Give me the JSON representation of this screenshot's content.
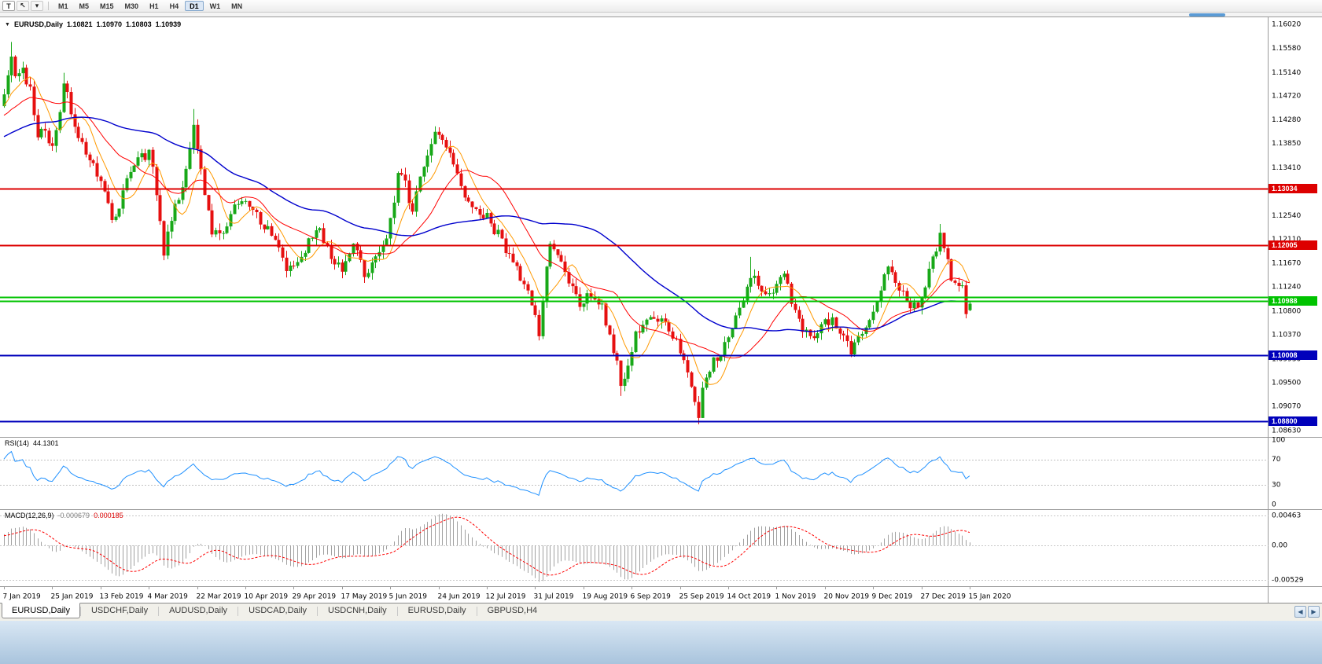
{
  "toolbar": {
    "tick_button": "T",
    "cursor_icon": "↖",
    "dropdown_icon": "▾",
    "timeframes": [
      "M1",
      "M5",
      "M15",
      "M30",
      "H1",
      "H4",
      "D1",
      "W1",
      "MN"
    ],
    "active_timeframe": "D1"
  },
  "chart_header": {
    "collapse_icon": "▼",
    "symbol": "EURUSD,Daily",
    "open": "1.10821",
    "high": "1.10970",
    "low": "1.10803",
    "close": "1.10939"
  },
  "price_axis": {
    "min": 1.0863,
    "max": 1.1602,
    "ticks": [
      "1.16020",
      "1.15580",
      "1.15140",
      "1.14720",
      "1.14280",
      "1.13850",
      "1.13410",
      "1.12980",
      "1.12540",
      "1.12110",
      "1.11670",
      "1.11240",
      "1.10800",
      "1.10370",
      "1.09930",
      "1.09500",
      "1.09070",
      "1.08630"
    ]
  },
  "hlines": [
    {
      "price": 1.13034,
      "label": "1.13034",
      "color": "#dd0000",
      "width": 2
    },
    {
      "price": 1.12005,
      "label": "1.12005",
      "color": "#dd0000",
      "width": 2
    },
    {
      "price": 1.11056,
      "label": "",
      "color": "#00c300",
      "width": 2
    },
    {
      "price": 1.10988,
      "label": "1.10988",
      "color": "#00c300",
      "width": 2
    },
    {
      "price": 1.10008,
      "label": "1.10008",
      "color": "#0000bb",
      "width": 2
    },
    {
      "price": 1.088,
      "label": "1.08800",
      "color": "#0000bb",
      "width": 2
    }
  ],
  "rsi_panel": {
    "label": "RSI(14)",
    "value": "44.1301",
    "ticks": [
      100,
      70,
      30,
      0
    ],
    "levels": [
      70,
      30
    ],
    "line_color": "#1e90ff"
  },
  "macd_panel": {
    "label": "MACD(12,26,9)",
    "value_main": "-0.000679",
    "value_signal": "0.000185",
    "axis_max": 0.00463,
    "axis_min": -0.00529,
    "ticks": [
      "0.00463",
      "0.00",
      "-0.00529"
    ],
    "histogram_color": "#a0a0a0",
    "signal_color": "#ff0000"
  },
  "date_axis": {
    "bars_per_label": 13,
    "labels": [
      "7 Jan 2019",
      "25 Jan 2019",
      "13 Feb 2019",
      "4 Mar 2019",
      "22 Mar 2019",
      "10 Apr 2019",
      "29 Apr 2019",
      "17 May 2019",
      "5 Jun 2019",
      "24 Jun 2019",
      "12 Jul 2019",
      "31 Jul 2019",
      "19 Aug 2019",
      "6 Sep 2019",
      "25 Sep 2019",
      "14 Oct 2019",
      "1 Nov 2019",
      "20 Nov 2019",
      "9 Dec 2019",
      "27 Dec 2019",
      "15 Jan 2020"
    ]
  },
  "tabs": {
    "items": [
      "EURUSD,Daily",
      "USDCHF,Daily",
      "AUDUSD,Daily",
      "USDCAD,Daily",
      "USDCNH,Daily",
      "EURUSD,Daily",
      "GBPUSD,H4"
    ],
    "active_index": 0,
    "scroll_left": "◀",
    "scroll_right": "▶"
  },
  "chart_data": {
    "type": "candlestick",
    "symbol": "EURUSD",
    "timeframe": "Daily",
    "n_bars": 261,
    "warmup_bars": 60,
    "noise_seed": 7,
    "noise_amp": 0.002,
    "wick_amp": 0.0013,
    "current_bar": {
      "open": 1.10821,
      "high": 1.1097,
      "low": 1.10803,
      "close": 1.10939
    },
    "close_path_anchors": [
      [
        -60,
        1.132
      ],
      [
        -25,
        1.1405
      ],
      [
        -5,
        1.1445
      ],
      [
        0,
        1.1465
      ],
      [
        2,
        1.155
      ],
      [
        3,
        1.1505
      ],
      [
        5,
        1.152
      ],
      [
        7,
        1.148
      ],
      [
        9,
        1.139
      ],
      [
        11,
        1.1415
      ],
      [
        13,
        1.1375
      ],
      [
        15,
        1.1435
      ],
      [
        16,
        1.15
      ],
      [
        18,
        1.1445
      ],
      [
        21,
        1.138
      ],
      [
        24,
        1.1345
      ],
      [
        27,
        1.1295
      ],
      [
        29,
        1.1245
      ],
      [
        32,
        1.129
      ],
      [
        34,
        1.1335
      ],
      [
        37,
        1.136
      ],
      [
        39,
        1.137
      ],
      [
        41,
        1.13
      ],
      [
        43,
        1.119
      ],
      [
        45,
        1.1245
      ],
      [
        48,
        1.131
      ],
      [
        50,
        1.1385
      ],
      [
        51,
        1.142
      ],
      [
        53,
        1.133
      ],
      [
        55,
        1.1255
      ],
      [
        56,
        1.1215
      ],
      [
        59,
        1.123
      ],
      [
        62,
        1.127
      ],
      [
        65,
        1.129
      ],
      [
        68,
        1.1255
      ],
      [
        71,
        1.123
      ],
      [
        74,
        1.119
      ],
      [
        76,
        1.115
      ],
      [
        79,
        1.1175
      ],
      [
        82,
        1.1205
      ],
      [
        85,
        1.1225
      ],
      [
        88,
        1.118
      ],
      [
        91,
        1.115
      ],
      [
        94,
        1.1205
      ],
      [
        97,
        1.115
      ],
      [
        100,
        1.1175
      ],
      [
        103,
        1.1215
      ],
      [
        105,
        1.128
      ],
      [
        106,
        1.134
      ],
      [
        108,
        1.131
      ],
      [
        110,
        1.126
      ],
      [
        112,
        1.133
      ],
      [
        114,
        1.137
      ],
      [
        116,
        1.14
      ],
      [
        118,
        1.1385
      ],
      [
        121,
        1.1345
      ],
      [
        124,
        1.1285
      ],
      [
        127,
        1.127
      ],
      [
        130,
        1.125
      ],
      [
        133,
        1.122
      ],
      [
        136,
        1.118
      ],
      [
        139,
        1.1145
      ],
      [
        141,
        1.112
      ],
      [
        143,
        1.1075
      ],
      [
        144,
        1.104
      ],
      [
        145,
        1.1105
      ],
      [
        146,
        1.1165
      ],
      [
        147,
        1.12
      ],
      [
        149,
        1.118
      ],
      [
        152,
        1.1135
      ],
      [
        155,
        1.1095
      ],
      [
        158,
        1.111
      ],
      [
        161,
        1.1085
      ],
      [
        163,
        1.104
      ],
      [
        165,
        1.0985
      ],
      [
        166,
        1.094
      ],
      [
        168,
        1.099
      ],
      [
        170,
        1.1035
      ],
      [
        172,
        1.1055
      ],
      [
        175,
        1.107
      ],
      [
        178,
        1.1055
      ],
      [
        181,
        1.1025
      ],
      [
        183,
        1.0995
      ],
      [
        185,
        1.095
      ],
      [
        187,
        1.0895
      ],
      [
        188,
        1.0935
      ],
      [
        190,
        1.098
      ],
      [
        193,
        1.1
      ],
      [
        196,
        1.1045
      ],
      [
        199,
        1.1105
      ],
      [
        201,
        1.1145
      ],
      [
        203,
        1.113
      ],
      [
        206,
        1.1105
      ],
      [
        208,
        1.1135
      ],
      [
        210,
        1.115
      ],
      [
        212,
        1.1095
      ],
      [
        215,
        1.105
      ],
      [
        218,
        1.1025
      ],
      [
        220,
        1.105
      ],
      [
        223,
        1.107
      ],
      [
        226,
        1.1035
      ],
      [
        228,
        1.1008
      ],
      [
        231,
        1.1045
      ],
      [
        234,
        1.1085
      ],
      [
        236,
        1.112
      ],
      [
        238,
        1.117
      ],
      [
        240,
        1.114
      ],
      [
        243,
        1.11
      ],
      [
        246,
        1.1085
      ],
      [
        248,
        1.112
      ],
      [
        250,
        1.1175
      ],
      [
        252,
        1.1215
      ],
      [
        254,
        1.1165
      ],
      [
        256,
        1.1125
      ],
      [
        258,
        1.112
      ],
      [
        259,
        1.1082
      ],
      [
        260,
        1.1094
      ]
    ],
    "forced_wicks": {
      "2": {
        "high": 1.157
      },
      "16": {
        "high": 1.1514
      },
      "51": {
        "high": 1.1448
      },
      "116": {
        "high": 1.1412
      },
      "144": {
        "low": 1.1027
      },
      "166": {
        "low": 1.0926
      },
      "187": {
        "low": 1.0879
      },
      "201": {
        "high": 1.1179
      },
      "252": {
        "high": 1.1239
      }
    },
    "colors": {
      "up": "#18a818",
      "down": "#e61010",
      "ma_fast": "#ff9900",
      "ma_mid": "#ff0000",
      "ma_slow": "#0000cd"
    },
    "ma_periods": {
      "fast": 8,
      "mid": 20,
      "slow": 55
    },
    "indicators": {
      "rsi_period": 14,
      "macd": [
        12,
        26,
        9
      ]
    }
  }
}
